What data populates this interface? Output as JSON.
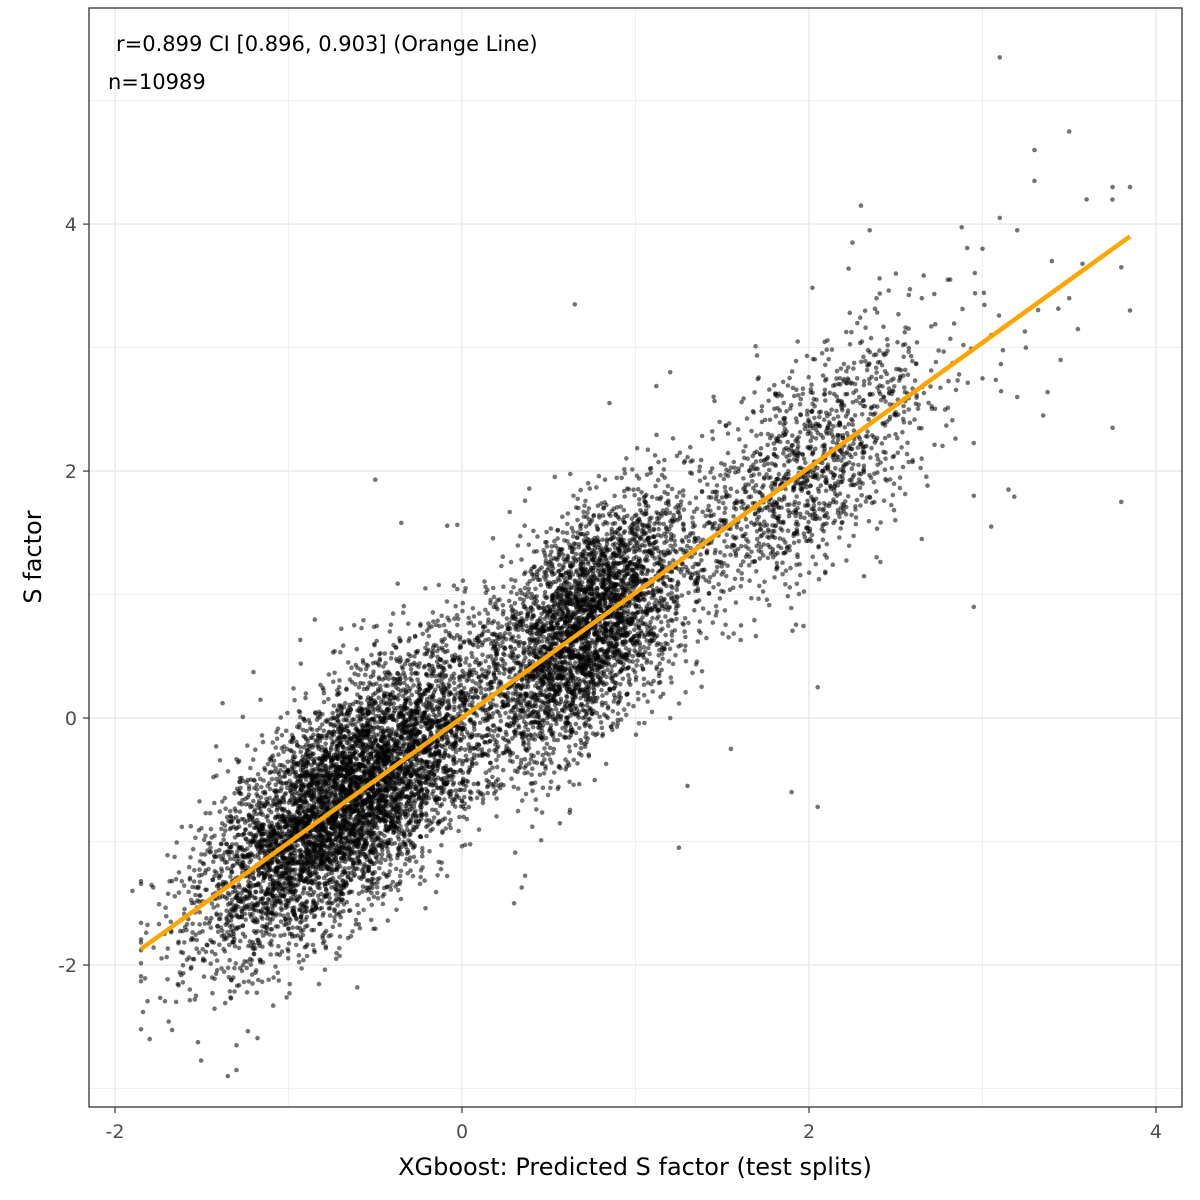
{
  "chart_data": {
    "type": "scatter",
    "xlabel": "XGboost: Predicted S factor (test splits)",
    "ylabel": "S factor",
    "xlim": [
      -2.15,
      4.15
    ],
    "ylim": [
      -3.15,
      5.75
    ],
    "xticks": [
      -2,
      0,
      2,
      4
    ],
    "xtick_labels": [
      "-2",
      "0",
      "2",
      "4"
    ],
    "yticks": [
      -2,
      0,
      2,
      4
    ],
    "ytick_labels": [
      "-2",
      "0",
      "2",
      "4"
    ],
    "grid": true,
    "annotations": [
      "r=0.899 CI [0.896, 0.903] (Orange Line)",
      "n=10989"
    ],
    "n": 10989,
    "point_color": "#000000",
    "point_opacity": 0.55,
    "fit_line": {
      "color": "#FFA500",
      "x": [
        -1.85,
        3.85
      ],
      "y": [
        -1.87,
        3.9
      ]
    },
    "outliers": [
      {
        "x": 3.1,
        "y": 5.35
      },
      {
        "x": 3.5,
        "y": 4.75
      },
      {
        "x": 3.3,
        "y": 4.6
      },
      {
        "x": 3.85,
        "y": 4.3
      },
      {
        "x": 3.6,
        "y": 4.2
      },
      {
        "x": 3.75,
        "y": 4.3
      },
      {
        "x": 3.3,
        "y": 4.35
      },
      {
        "x": 3.1,
        "y": 4.05
      },
      {
        "x": 2.3,
        "y": 4.15
      },
      {
        "x": 2.35,
        "y": 3.95
      },
      {
        "x": 3.2,
        "y": 3.95
      },
      {
        "x": 3.0,
        "y": 3.8
      },
      {
        "x": 2.25,
        "y": 3.85
      },
      {
        "x": 3.4,
        "y": 3.7
      },
      {
        "x": 3.8,
        "y": 3.65
      },
      {
        "x": 3.5,
        "y": 3.4
      },
      {
        "x": 3.55,
        "y": 3.15
      },
      {
        "x": 3.85,
        "y": 3.3
      },
      {
        "x": 0.65,
        "y": 3.35
      },
      {
        "x": 2.8,
        "y": 3.55
      },
      {
        "x": 2.65,
        "y": 3.4
      },
      {
        "x": 3.05,
        "y": 3.1
      },
      {
        "x": 3.25,
        "y": 3.0
      },
      {
        "x": 3.45,
        "y": 2.9
      },
      {
        "x": 3.2,
        "y": 2.6
      },
      {
        "x": 3.35,
        "y": 2.45
      },
      {
        "x": 3.0,
        "y": 2.75
      },
      {
        "x": 3.75,
        "y": 2.35
      },
      {
        "x": 3.8,
        "y": 1.75
      },
      {
        "x": 3.15,
        "y": 1.85
      },
      {
        "x": 3.05,
        "y": 1.55
      },
      {
        "x": 2.95,
        "y": 1.8
      },
      {
        "x": 2.95,
        "y": 0.9
      },
      {
        "x": 2.65,
        "y": 1.45
      },
      {
        "x": 2.05,
        "y": 0.25
      },
      {
        "x": 1.9,
        "y": -0.6
      },
      {
        "x": 2.05,
        "y": -0.72
      },
      {
        "x": 1.3,
        "y": -0.55
      },
      {
        "x": 1.55,
        "y": -0.25
      },
      {
        "x": 1.25,
        "y": -1.05
      },
      {
        "x": 1.2,
        "y": 2.8
      },
      {
        "x": 0.85,
        "y": 2.55
      },
      {
        "x": -0.5,
        "y": 1.93
      },
      {
        "x": -0.35,
        "y": 1.58
      },
      {
        "x": -1.38,
        "y": 0.12
      },
      {
        "x": -1.8,
        "y": -2.6
      },
      {
        "x": -1.3,
        "y": -2.85
      },
      {
        "x": -1.35,
        "y": -2.9
      },
      {
        "x": -1.3,
        "y": -2.65
      },
      {
        "x": -1.9,
        "y": -1.4
      },
      {
        "x": -0.55,
        "y": -1.4
      },
      {
        "x": 0.3,
        "y": -1.5
      }
    ]
  }
}
